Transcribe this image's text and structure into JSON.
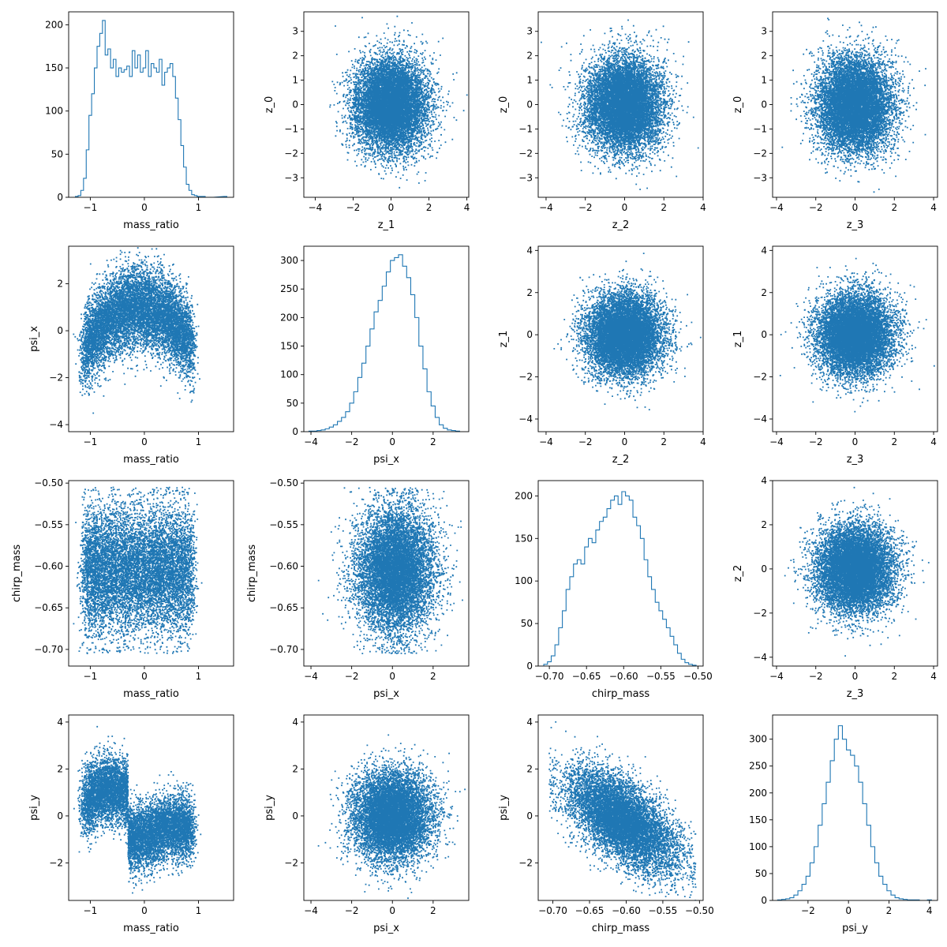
{
  "figure": {
    "background": "#ffffff",
    "series_color": "#1f77b4",
    "axes_color": "#000000"
  },
  "chart_data": [
    {
      "type": "histogram",
      "row": 0,
      "col": 0,
      "xlabel": "mass_ratio",
      "ylabel": "",
      "xlim": [
        -1.4,
        1.65
      ],
      "ylim": [
        0,
        215
      ],
      "xticks": [
        -1,
        0,
        1
      ],
      "yticks": [
        0,
        50,
        100,
        150,
        200
      ],
      "x": [
        -1.25,
        -1.2,
        -1.15,
        -1.1,
        -1.05,
        -1.0,
        -0.95,
        -0.9,
        -0.85,
        -0.8,
        -0.75,
        -0.7,
        -0.65,
        -0.6,
        -0.55,
        -0.5,
        -0.45,
        -0.4,
        -0.35,
        -0.3,
        -0.25,
        -0.2,
        -0.15,
        -0.1,
        -0.05,
        0.0,
        0.05,
        0.1,
        0.15,
        0.2,
        0.25,
        0.3,
        0.35,
        0.4,
        0.45,
        0.5,
        0.55,
        0.6,
        0.65,
        0.7,
        0.75,
        0.8,
        0.85,
        0.9,
        0.95,
        1.0,
        1.05,
        1.1,
        1.15,
        1.2,
        1.25,
        1.5
      ],
      "values": [
        1,
        2,
        8,
        22,
        55,
        95,
        120,
        150,
        175,
        190,
        205,
        165,
        172,
        150,
        160,
        140,
        150,
        145,
        148,
        152,
        140,
        170,
        150,
        165,
        145,
        150,
        170,
        140,
        155,
        150,
        145,
        160,
        130,
        145,
        150,
        155,
        140,
        115,
        90,
        60,
        35,
        15,
        8,
        3,
        2,
        1,
        1,
        1,
        0,
        0,
        0,
        1
      ]
    },
    {
      "type": "scatter",
      "row": 0,
      "col": 1,
      "xlabel": "z_1",
      "ylabel": "z_0",
      "xlim": [
        -4.6,
        4.1
      ],
      "ylim": [
        -3.8,
        3.8
      ],
      "xticks": [
        -4,
        -2,
        0,
        2,
        4
      ],
      "yticks": [
        -3,
        -2,
        -1,
        0,
        1,
        2,
        3
      ],
      "distribution": {
        "kind": "gaussian",
        "n": 10000,
        "mean": [
          0,
          0
        ],
        "std": [
          0.95,
          0.95
        ],
        "seed": 11
      }
    },
    {
      "type": "scatter",
      "row": 0,
      "col": 2,
      "xlabel": "z_2",
      "ylabel": "z_0",
      "xlim": [
        -4.4,
        4.0
      ],
      "ylim": [
        -3.8,
        3.8
      ],
      "xticks": [
        -4,
        -2,
        0,
        2,
        4
      ],
      "yticks": [
        -3,
        -2,
        -1,
        0,
        1,
        2,
        3
      ],
      "distribution": {
        "kind": "gaussian",
        "n": 10000,
        "mean": [
          0,
          0
        ],
        "std": [
          0.95,
          0.95
        ],
        "seed": 12
      }
    },
    {
      "type": "scatter",
      "row": 0,
      "col": 3,
      "xlabel": "z_3",
      "ylabel": "z_0",
      "xlim": [
        -4.2,
        4.2
      ],
      "ylim": [
        -3.8,
        3.8
      ],
      "xticks": [
        -4,
        -2,
        0,
        2,
        4
      ],
      "yticks": [
        -3,
        -2,
        -1,
        0,
        1,
        2,
        3
      ],
      "distribution": {
        "kind": "gaussian",
        "n": 10000,
        "mean": [
          0,
          0
        ],
        "std": [
          0.95,
          0.95
        ],
        "seed": 13
      }
    },
    {
      "type": "scatter",
      "row": 1,
      "col": 0,
      "xlabel": "mass_ratio",
      "ylabel": "psi_x",
      "xlim": [
        -1.4,
        1.65
      ],
      "ylim": [
        -4.3,
        3.6
      ],
      "xticks": [
        -1,
        0,
        1
      ],
      "yticks": [
        -4,
        -2,
        0,
        2
      ],
      "distribution": {
        "kind": "arch",
        "n": 9000,
        "seed": 21
      }
    },
    {
      "type": "histogram",
      "row": 1,
      "col": 1,
      "xlabel": "psi_x",
      "ylabel": "",
      "xlim": [
        -4.35,
        3.75
      ],
      "ylim": [
        0,
        325
      ],
      "xticks": [
        -4,
        -2,
        0,
        2
      ],
      "yticks": [
        0,
        50,
        100,
        150,
        200,
        250,
        300
      ],
      "x": [
        -4.0,
        -3.8,
        -3.6,
        -3.4,
        -3.2,
        -3.0,
        -2.8,
        -2.6,
        -2.4,
        -2.2,
        -2.0,
        -1.8,
        -1.6,
        -1.4,
        -1.2,
        -1.0,
        -0.8,
        -0.6,
        -0.4,
        -0.2,
        0.0,
        0.2,
        0.4,
        0.6,
        0.8,
        1.0,
        1.2,
        1.4,
        1.6,
        1.8,
        2.0,
        2.2,
        2.4,
        2.6,
        2.8,
        3.0,
        3.2
      ],
      "values": [
        1,
        1,
        2,
        3,
        5,
        8,
        12,
        18,
        25,
        35,
        50,
        70,
        95,
        120,
        150,
        180,
        210,
        230,
        255,
        280,
        300,
        305,
        310,
        290,
        270,
        240,
        200,
        150,
        110,
        70,
        45,
        25,
        12,
        6,
        3,
        2,
        1
      ]
    },
    {
      "type": "scatter",
      "row": 1,
      "col": 2,
      "xlabel": "z_2",
      "ylabel": "z_1",
      "xlim": [
        -4.4,
        4.0
      ],
      "ylim": [
        -4.6,
        4.2
      ],
      "xticks": [
        -4,
        -2,
        0,
        2,
        4
      ],
      "yticks": [
        -4,
        -2,
        0,
        2,
        4
      ],
      "distribution": {
        "kind": "gaussian",
        "n": 10000,
        "mean": [
          0,
          0
        ],
        "std": [
          0.95,
          0.95
        ],
        "seed": 22
      }
    },
    {
      "type": "scatter",
      "row": 1,
      "col": 3,
      "xlabel": "z_3",
      "ylabel": "z_1",
      "xlim": [
        -4.2,
        4.2
      ],
      "ylim": [
        -4.6,
        4.2
      ],
      "xticks": [
        -4,
        -2,
        0,
        2,
        4
      ],
      "yticks": [
        -4,
        -2,
        0,
        2,
        4
      ],
      "distribution": {
        "kind": "gaussian",
        "n": 10000,
        "mean": [
          0,
          0
        ],
        "std": [
          0.95,
          0.95
        ],
        "seed": 23
      }
    },
    {
      "type": "scatter",
      "row": 2,
      "col": 0,
      "xlabel": "mass_ratio",
      "ylabel": "chirp_mass",
      "xlim": [
        -1.4,
        1.65
      ],
      "ylim": [
        -0.72,
        -0.497
      ],
      "xticks": [
        -1,
        0,
        1
      ],
      "yticks": [
        -0.7,
        -0.65,
        -0.6,
        -0.55,
        -0.5
      ],
      "distribution": {
        "kind": "block",
        "n": 9000,
        "seed": 31
      }
    },
    {
      "type": "scatter",
      "row": 2,
      "col": 1,
      "xlabel": "psi_x",
      "ylabel": "chirp_mass",
      "xlim": [
        -4.35,
        3.75
      ],
      "ylim": [
        -0.72,
        -0.497
      ],
      "xticks": [
        -4,
        -2,
        0,
        2
      ],
      "yticks": [
        -0.7,
        -0.65,
        -0.6,
        -0.55,
        -0.5
      ],
      "distribution": {
        "kind": "psi_chirp",
        "n": 9000,
        "seed": 32
      }
    },
    {
      "type": "histogram",
      "row": 2,
      "col": 2,
      "xlabel": "chirp_mass",
      "ylabel": "",
      "xlim": [
        -0.715,
        -0.493
      ],
      "ylim": [
        0,
        218
      ],
      "xticks": [
        -0.7,
        -0.65,
        -0.6,
        -0.55,
        -0.5
      ],
      "yticks": [
        0,
        50,
        100,
        150,
        200
      ],
      "x": [
        -0.705,
        -0.7,
        -0.695,
        -0.69,
        -0.685,
        -0.68,
        -0.675,
        -0.67,
        -0.665,
        -0.66,
        -0.655,
        -0.65,
        -0.645,
        -0.64,
        -0.635,
        -0.63,
        -0.625,
        -0.62,
        -0.615,
        -0.61,
        -0.605,
        -0.6,
        -0.595,
        -0.59,
        -0.585,
        -0.58,
        -0.575,
        -0.57,
        -0.565,
        -0.56,
        -0.555,
        -0.55,
        -0.545,
        -0.54,
        -0.535,
        -0.53,
        -0.525,
        -0.52,
        -0.515,
        -0.51,
        -0.505
      ],
      "values": [
        2,
        5,
        12,
        25,
        45,
        65,
        90,
        105,
        120,
        125,
        120,
        140,
        150,
        145,
        160,
        170,
        175,
        185,
        195,
        200,
        190,
        205,
        200,
        195,
        175,
        165,
        150,
        125,
        105,
        90,
        75,
        65,
        55,
        45,
        35,
        25,
        15,
        8,
        4,
        2,
        1
      ]
    },
    {
      "type": "scatter",
      "row": 2,
      "col": 3,
      "xlabel": "z_3",
      "ylabel": "z_2",
      "xlim": [
        -4.2,
        4.2
      ],
      "ylim": [
        -4.4,
        4.0
      ],
      "xticks": [
        -4,
        -2,
        0,
        2,
        4
      ],
      "yticks": [
        -4,
        -2,
        0,
        2,
        4
      ],
      "distribution": {
        "kind": "gaussian",
        "n": 10000,
        "mean": [
          0,
          0
        ],
        "std": [
          0.95,
          0.95
        ],
        "seed": 33
      }
    },
    {
      "type": "scatter",
      "row": 3,
      "col": 0,
      "xlabel": "mass_ratio",
      "ylabel": "psi_y",
      "xlim": [
        -1.4,
        1.65
      ],
      "ylim": [
        -3.6,
        4.3
      ],
      "xticks": [
        -1,
        0,
        1
      ],
      "yticks": [
        -2,
        0,
        2,
        4
      ],
      "distribution": {
        "kind": "s_curve",
        "n": 9000,
        "seed": 41
      }
    },
    {
      "type": "scatter",
      "row": 3,
      "col": 1,
      "xlabel": "psi_x",
      "ylabel": "psi_y",
      "xlim": [
        -4.35,
        3.75
      ],
      "ylim": [
        -3.6,
        4.3
      ],
      "xticks": [
        -4,
        -2,
        0,
        2
      ],
      "yticks": [
        -2,
        0,
        2,
        4
      ],
      "distribution": {
        "kind": "gaussian",
        "n": 9000,
        "mean": [
          0,
          0
        ],
        "std": [
          0.95,
          0.95
        ],
        "seed": 42
      }
    },
    {
      "type": "scatter",
      "row": 3,
      "col": 2,
      "xlabel": "chirp_mass",
      "ylabel": "psi_y",
      "xlim": [
        -0.72,
        -0.495
      ],
      "ylim": [
        -3.6,
        4.3
      ],
      "xticks": [
        -0.7,
        -0.65,
        -0.6,
        -0.55,
        -0.5
      ],
      "yticks": [
        -2,
        0,
        2,
        4
      ],
      "distribution": {
        "kind": "chirp_psi",
        "n": 9000,
        "seed": 43
      }
    },
    {
      "type": "histogram",
      "row": 3,
      "col": 3,
      "xlabel": "psi_y",
      "ylabel": "",
      "xlim": [
        -3.75,
        4.4
      ],
      "ylim": [
        0,
        345
      ],
      "xticks": [
        -2,
        0,
        2,
        4
      ],
      "yticks": [
        0,
        50,
        100,
        150,
        200,
        250,
        300
      ],
      "x": [
        -3.4,
        -3.2,
        -3.0,
        -2.8,
        -2.6,
        -2.4,
        -2.2,
        -2.0,
        -1.8,
        -1.6,
        -1.4,
        -1.2,
        -1.0,
        -0.8,
        -0.6,
        -0.4,
        -0.2,
        0.0,
        0.2,
        0.4,
        0.6,
        0.8,
        1.0,
        1.2,
        1.4,
        1.6,
        1.8,
        2.0,
        2.2,
        2.4,
        2.6,
        2.8,
        3.0,
        3.2,
        3.4,
        3.6,
        3.8,
        4.0
      ],
      "values": [
        1,
        2,
        3,
        5,
        10,
        18,
        30,
        45,
        70,
        100,
        140,
        180,
        220,
        260,
        300,
        325,
        300,
        280,
        270,
        250,
        220,
        180,
        140,
        100,
        70,
        45,
        30,
        18,
        10,
        5,
        3,
        2,
        1,
        1,
        1,
        0,
        0,
        1
      ]
    }
  ]
}
